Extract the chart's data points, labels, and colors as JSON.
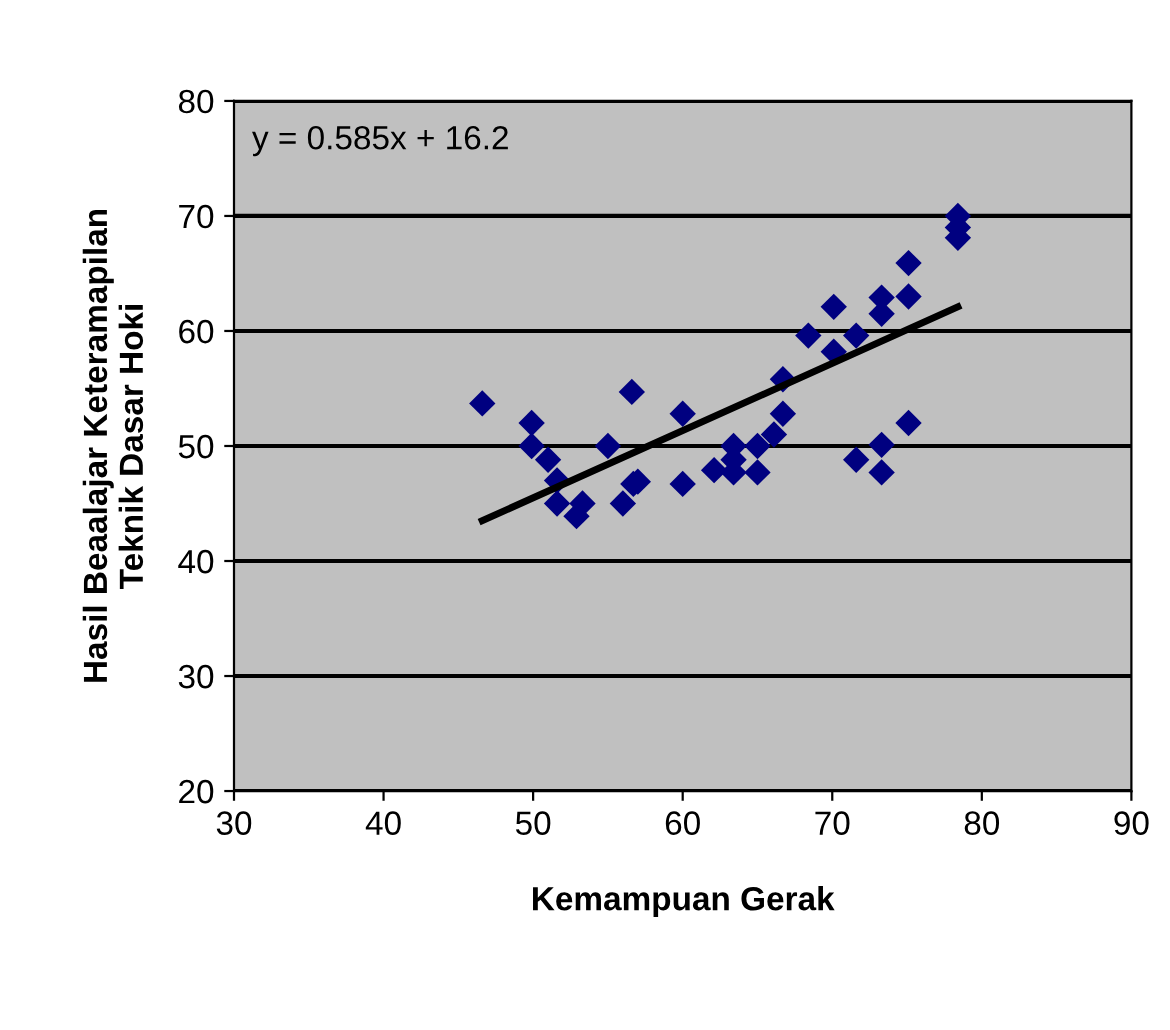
{
  "chart_data": {
    "type": "scatter",
    "xlabel": "Kemampuan Gerak",
    "ylabel": "Hasil Beaalajar Keteramapilan\nTeknik Dasar Hoki",
    "annotations": [
      "y = 0.585x + 16.2"
    ],
    "series": [
      {
        "color": "#000080",
        "marker": "diamond",
        "x": [
          46.6,
          49.9,
          49.9,
          51.0,
          51.6,
          51.6,
          52.9,
          53.3,
          55.0,
          56.6,
          56.0,
          56.7,
          57.0,
          60.0,
          60.0,
          62.1,
          63.4,
          63.4,
          63.4,
          65.0,
          65.0,
          66.1,
          66.7,
          66.7,
          68.4,
          70.1,
          70.1,
          71.6,
          73.3,
          73.3,
          75.1,
          75.1,
          78.4,
          78.4,
          78.4,
          75.1,
          73.3,
          73.3,
          71.6
        ],
        "values": [
          53.7,
          52.0,
          50.0,
          48.8,
          47.0,
          45.0,
          43.9,
          45.0,
          50.0,
          54.7,
          45.0,
          46.7,
          46.9,
          52.8,
          46.7,
          47.9,
          50.0,
          48.8,
          47.7,
          50.0,
          47.7,
          51.0,
          52.8,
          55.8,
          59.6,
          62.1,
          58.2,
          59.6,
          62.9,
          61.5,
          65.9,
          63.0,
          68.1,
          69.0,
          70.0,
          52.0,
          50.1,
          47.7,
          48.8
        ]
      },
      {
        "type": "line",
        "color": "#000000",
        "marker": "none",
        "line_style": "solid",
        "x": [
          46.6,
          78.4
        ],
        "values": [
          43.5,
          62.1
        ]
      }
    ],
    "xlim": [
      30,
      90
    ],
    "ylim": [
      20,
      80
    ],
    "xticks": [
      30,
      40,
      50,
      60,
      70,
      80,
      90
    ],
    "yticks": [
      20,
      30,
      40,
      50,
      60,
      70,
      80
    ],
    "grid": "y",
    "legend": false
  }
}
